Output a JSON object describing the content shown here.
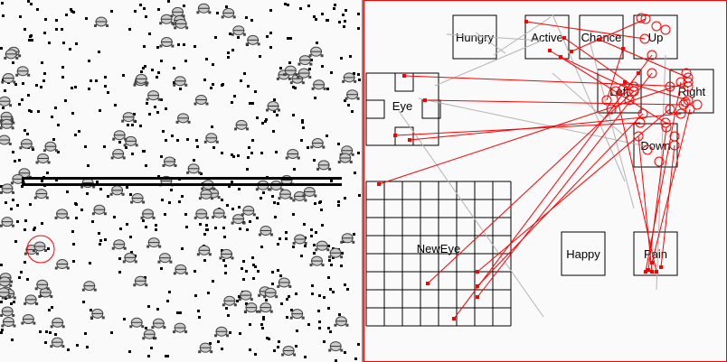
{
  "world": {
    "wall": true,
    "selected_creature": true
  },
  "brain": {
    "nodes": [
      {
        "id": "hungry",
        "label": "Hungry"
      },
      {
        "id": "active",
        "label": "Active"
      },
      {
        "id": "chance",
        "label": "Chance"
      },
      {
        "id": "up",
        "label": "Up"
      },
      {
        "id": "left",
        "label": "Left"
      },
      {
        "id": "right",
        "label": "Right"
      },
      {
        "id": "down",
        "label": "Down"
      },
      {
        "id": "eye",
        "label": "Eye"
      },
      {
        "id": "neweye",
        "label": "NewEye"
      },
      {
        "id": "happy",
        "label": "Happy"
      },
      {
        "id": "pain",
        "label": "Pain"
      }
    ]
  },
  "colors": {
    "excitatory": "#ff0000",
    "inhibitory": "#b4b4b4",
    "border": "#ff0000"
  }
}
